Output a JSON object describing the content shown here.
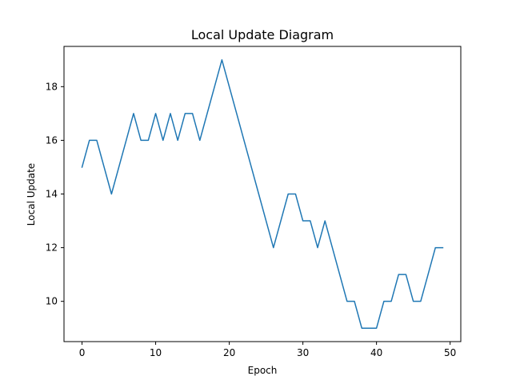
{
  "chart_data": {
    "type": "line",
    "title": "Local Update Diagram",
    "xlabel": "Epoch",
    "ylabel": "Local Update",
    "xlim": [
      -2.45,
      51.45
    ],
    "ylim": [
      8.5,
      19.5
    ],
    "xticks": [
      0,
      10,
      20,
      30,
      40,
      50
    ],
    "yticks": [
      10,
      12,
      14,
      16,
      18
    ],
    "grid": false,
    "series": [
      {
        "color": "#1f77b4",
        "x": [
          0,
          1,
          2,
          3,
          4,
          5,
          6,
          7,
          8,
          9,
          10,
          11,
          12,
          13,
          14,
          15,
          16,
          17,
          18,
          19,
          20,
          21,
          22,
          23,
          24,
          25,
          26,
          27,
          28,
          29,
          30,
          31,
          32,
          33,
          34,
          35,
          36,
          37,
          38,
          39,
          40,
          41,
          42,
          43,
          44,
          45,
          46,
          47,
          48,
          49
        ],
        "values": [
          15,
          16,
          16,
          15,
          14,
          15,
          16,
          17,
          16,
          16,
          17,
          16,
          17,
          16,
          17,
          17,
          16,
          17,
          18,
          19,
          18,
          17,
          16,
          15,
          14,
          13,
          12,
          13,
          14,
          14,
          13,
          13,
          12,
          13,
          12,
          11,
          10,
          10,
          9,
          9,
          9,
          10,
          10,
          11,
          11,
          10,
          10,
          11,
          12,
          12
        ]
      }
    ]
  }
}
